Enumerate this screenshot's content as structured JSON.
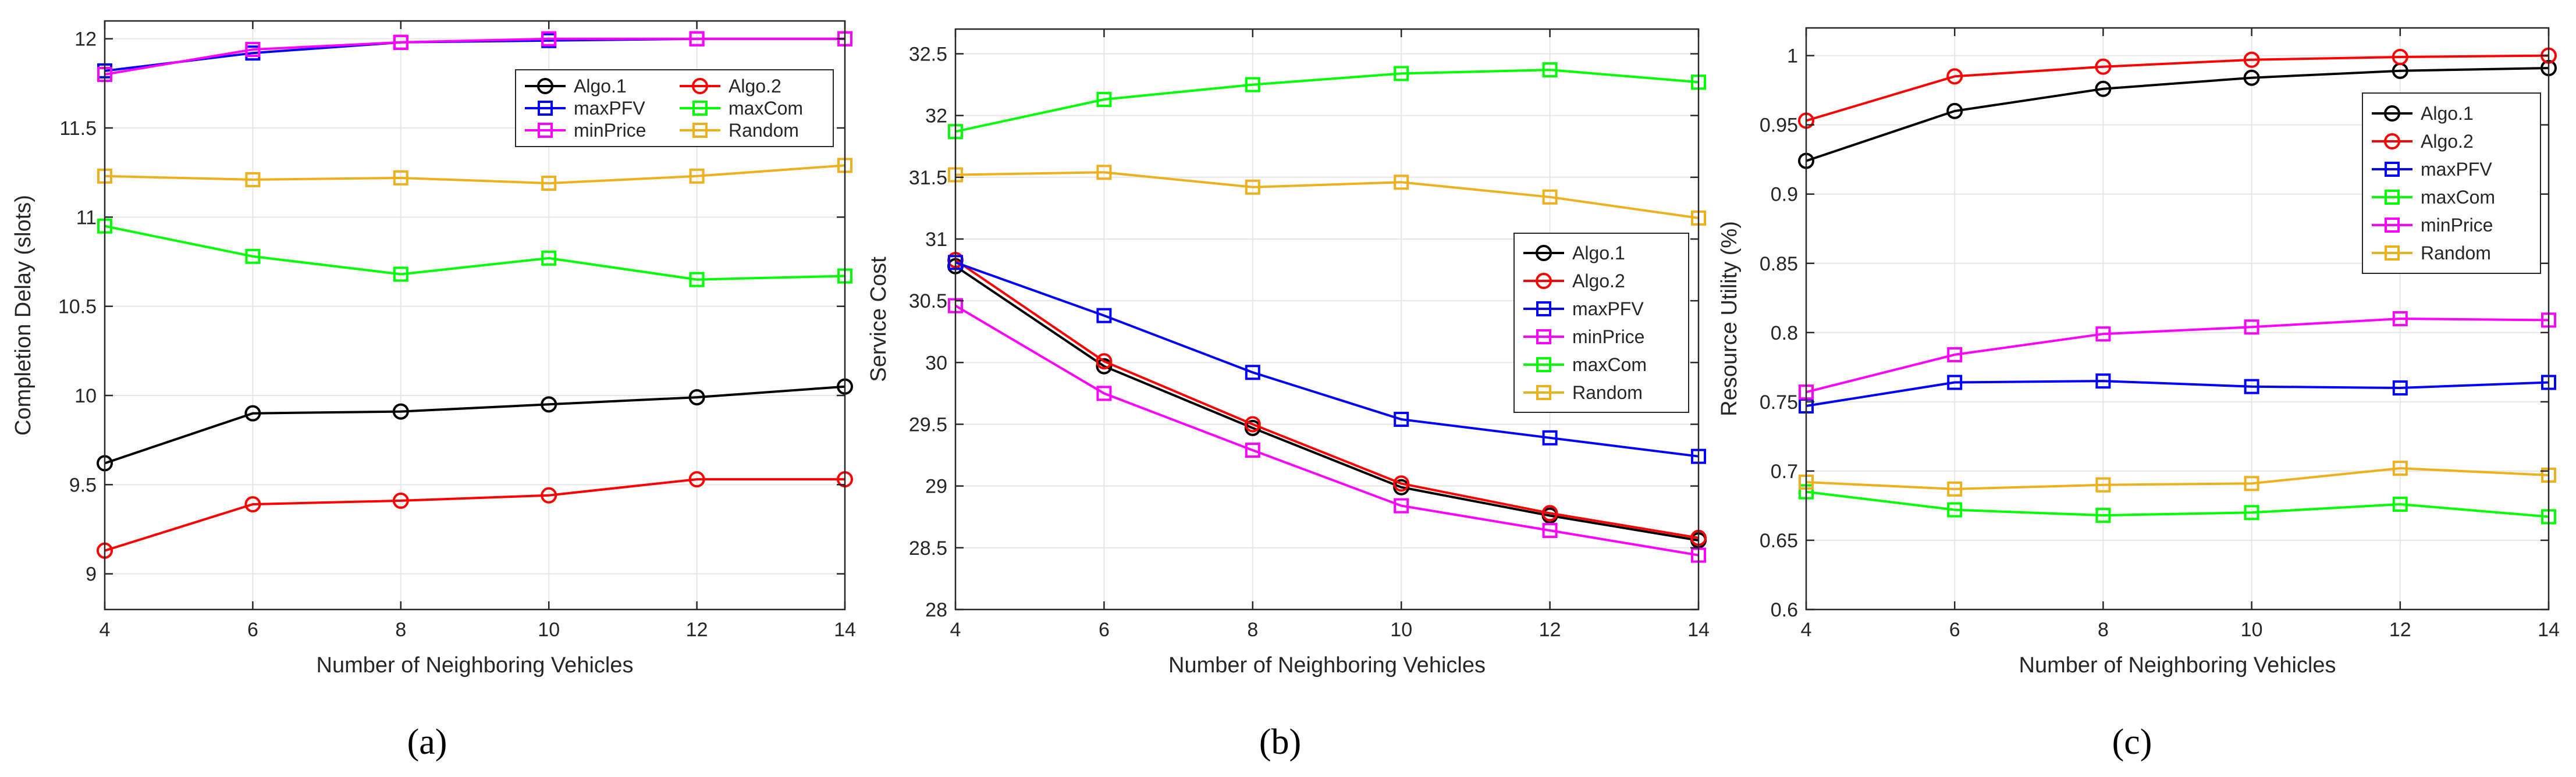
{
  "colors": {
    "Algo.1": "#000000",
    "Algo.2": "#ff0000",
    "maxPFV": "#0000ff",
    "maxCom": "#00ff00",
    "minPrice": "#ff00ff",
    "Random": "#edb120",
    "grid": "#e6e6e6",
    "axis": "#262626"
  },
  "chart_data": [
    {
      "type": "line",
      "panel_label": "(a)",
      "xlabel": "Number of Neighboring Vehicles",
      "ylabel": "Completion Delay (slots)",
      "xlim": [
        4,
        14
      ],
      "ylim": [
        8.8,
        12.1
      ],
      "xticks": [
        4,
        6,
        8,
        10,
        12,
        14
      ],
      "yticks": [
        9,
        9.5,
        10,
        10.5,
        11,
        11.5,
        12
      ],
      "ytick_labels": [
        "9",
        "9.5",
        "10",
        "10.5",
        "11",
        "11.5",
        "12"
      ],
      "grid": true,
      "legend_position": "top-right",
      "legend_layout": "two-column",
      "x": [
        4,
        6,
        8,
        10,
        12,
        14
      ],
      "series": [
        {
          "name": "Algo.1",
          "marker": "circle",
          "values": [
            9.62,
            9.9,
            9.91,
            9.95,
            9.99,
            10.05
          ]
        },
        {
          "name": "Algo.2",
          "marker": "circle",
          "values": [
            9.13,
            9.39,
            9.41,
            9.44,
            9.53,
            9.53
          ]
        },
        {
          "name": "maxPFV",
          "marker": "square",
          "values": [
            11.82,
            11.92,
            11.98,
            11.99,
            12.0,
            12.0
          ]
        },
        {
          "name": "maxCom",
          "marker": "square",
          "values": [
            10.95,
            10.78,
            10.68,
            10.77,
            10.65,
            10.67
          ]
        },
        {
          "name": "minPrice",
          "marker": "square",
          "values": [
            11.8,
            11.94,
            11.98,
            12.0,
            12.0,
            12.0
          ]
        },
        {
          "name": "Random",
          "marker": "square",
          "values": [
            11.23,
            11.21,
            11.22,
            11.19,
            11.23,
            11.29
          ]
        }
      ]
    },
    {
      "type": "line",
      "panel_label": "(b)",
      "xlabel": "Number of Neighboring Vehicles",
      "ylabel": "Service Cost",
      "xlim": [
        4,
        14
      ],
      "ylim": [
        28,
        32.7
      ],
      "xticks": [
        4,
        6,
        8,
        10,
        12,
        14
      ],
      "yticks": [
        28,
        28.5,
        29,
        29.5,
        30,
        30.5,
        31,
        31.5,
        32,
        32.5
      ],
      "ytick_labels": [
        "28",
        "28.5",
        "29",
        "29.5",
        "30",
        "30.5",
        "31",
        "31.5",
        "32",
        "32.5"
      ],
      "grid": true,
      "legend_position": "right-middle",
      "legend_layout": "one-column",
      "x": [
        4,
        6,
        8,
        10,
        12,
        14
      ],
      "series": [
        {
          "name": "Algo.1",
          "marker": "circle",
          "values": [
            30.78,
            29.97,
            29.47,
            28.99,
            28.76,
            28.56
          ]
        },
        {
          "name": "Algo.2",
          "marker": "circle",
          "values": [
            30.83,
            30.01,
            29.5,
            29.02,
            28.78,
            28.58
          ]
        },
        {
          "name": "maxPFV",
          "marker": "square",
          "values": [
            30.81,
            30.38,
            29.92,
            29.54,
            29.39,
            29.24
          ]
        },
        {
          "name": "minPrice",
          "marker": "square",
          "values": [
            30.46,
            29.75,
            29.29,
            28.84,
            28.64,
            28.44
          ]
        },
        {
          "name": "maxCom",
          "marker": "square",
          "values": [
            31.87,
            32.13,
            32.25,
            32.34,
            32.37,
            32.27
          ]
        },
        {
          "name": "Random",
          "marker": "square",
          "values": [
            31.52,
            31.54,
            31.42,
            31.46,
            31.34,
            31.17
          ]
        }
      ]
    },
    {
      "type": "line",
      "panel_label": "(c)",
      "xlabel": "Number of Neighboring Vehicles",
      "ylabel": "Resource Utility (%)",
      "xlim": [
        4,
        14
      ],
      "ylim": [
        0.6,
        1.02
      ],
      "xticks": [
        4,
        6,
        8,
        10,
        12,
        14
      ],
      "yticks": [
        0.6,
        0.65,
        0.7,
        0.75,
        0.8,
        0.85,
        0.9,
        0.95,
        1
      ],
      "ytick_labels": [
        "0.6",
        "0.65",
        "0.7",
        "0.75",
        "0.8",
        "0.85",
        "0.9",
        "0.95",
        "1"
      ],
      "grid": true,
      "legend_position": "top-right",
      "legend_layout": "one-column",
      "x": [
        4,
        6,
        8,
        10,
        12,
        14
      ],
      "series": [
        {
          "name": "Algo.1",
          "marker": "circle",
          "values": [
            0.924,
            0.96,
            0.976,
            0.984,
            0.989,
            0.991
          ]
        },
        {
          "name": "Algo.2",
          "marker": "circle",
          "values": [
            0.953,
            0.985,
            0.992,
            0.997,
            0.999,
            1.0
          ]
        },
        {
          "name": "maxPFV",
          "marker": "square",
          "values": [
            0.747,
            0.764,
            0.765,
            0.761,
            0.76,
            0.764
          ]
        },
        {
          "name": "maxCom",
          "marker": "square",
          "values": [
            0.685,
            0.672,
            0.668,
            0.67,
            0.676,
            0.667
          ]
        },
        {
          "name": "minPrice",
          "marker": "square",
          "values": [
            0.757,
            0.784,
            0.799,
            0.804,
            0.81,
            0.809
          ]
        },
        {
          "name": "Random",
          "marker": "square",
          "values": [
            0.692,
            0.687,
            0.69,
            0.691,
            0.702,
            0.697
          ]
        }
      ]
    }
  ]
}
